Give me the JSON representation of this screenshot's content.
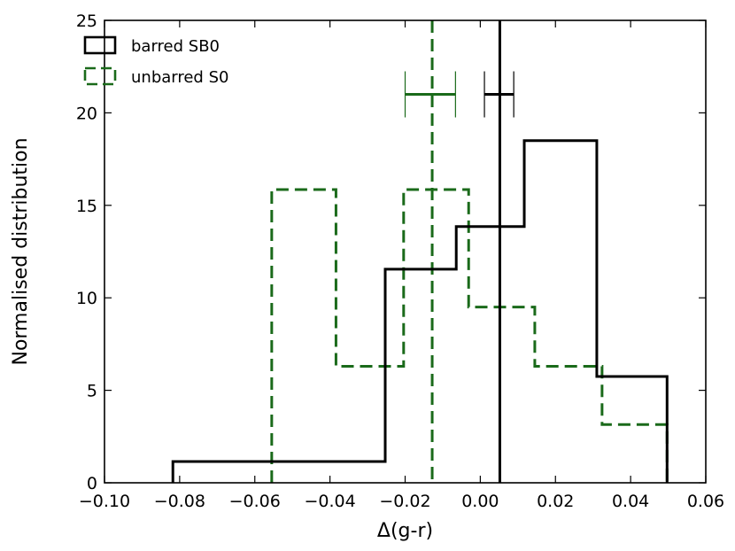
{
  "chart_data": {
    "type": "histogram",
    "title": "",
    "xlabel": "Δ(g-r)",
    "ylabel": "Normalised distribution",
    "xlim": [
      -0.1,
      0.06
    ],
    "ylim": [
      0,
      25
    ],
    "xticks": [
      -0.1,
      -0.08,
      -0.06,
      -0.04,
      -0.02,
      0.0,
      0.02,
      0.04,
      0.06
    ],
    "xtick_labels": [
      "−0.10",
      "−0.08",
      "−0.06",
      "−0.04",
      "−0.02",
      "0.00",
      "0.02",
      "0.04",
      "0.06"
    ],
    "yticks": [
      0,
      5,
      10,
      15,
      20,
      25
    ],
    "ytick_labels": [
      "0",
      "5",
      "10",
      "15",
      "20",
      "25"
    ],
    "grid": false,
    "legend_position": "top-left",
    "series": [
      {
        "name": "barred SB0",
        "style": "solid",
        "color": "#000000",
        "bin_edges": [
          -0.0818,
          -0.0253,
          -0.0064,
          0.0117,
          0.031,
          0.0497
        ],
        "values": [
          1.15,
          11.55,
          13.85,
          18.5,
          5.75
        ],
        "median": 0.0052,
        "error_interval": [
          0.0011,
          0.0089
        ],
        "error_bar_y": 21.0
      },
      {
        "name": "unbarred S0",
        "style": "dashed",
        "color": "#1a6a1a",
        "bin_edges": [
          -0.0555,
          -0.0384,
          -0.0204,
          -0.0031,
          0.0145,
          0.0324,
          0.0497
        ],
        "values": [
          15.85,
          6.3,
          15.85,
          9.5,
          6.3,
          3.15
        ],
        "median": -0.0128,
        "error_interval": [
          -0.02,
          -0.0066
        ],
        "error_bar_y": 21.0
      }
    ]
  }
}
